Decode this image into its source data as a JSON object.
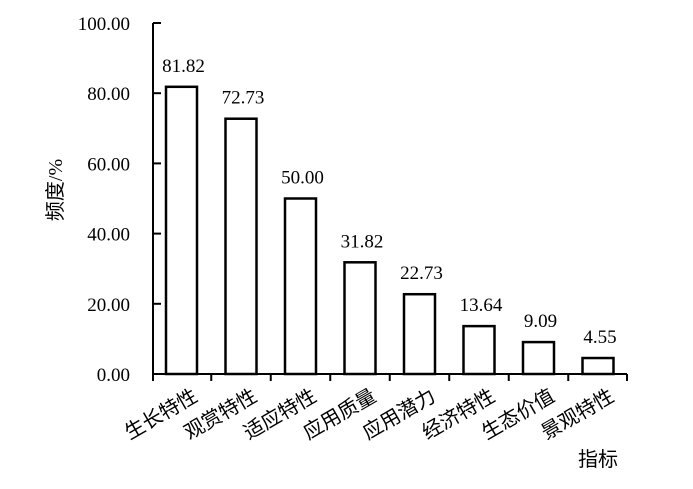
{
  "chart_data": {
    "type": "bar",
    "title": "",
    "xlabel": "指标",
    "ylabel": "频度/%",
    "categories": [
      "生长特性",
      "观赏特性",
      "适应特性",
      "应用质量",
      "应用潜力",
      "经济特性",
      "生态价值",
      "景观特性"
    ],
    "values": [
      81.82,
      72.73,
      50.0,
      31.82,
      22.73,
      13.64,
      9.09,
      4.55
    ],
    "value_labels": [
      "81.82",
      "72.73",
      "50.00",
      "31.82",
      "22.73",
      "13.64",
      "9.09",
      "4.55"
    ],
    "yticks": [
      "0.00",
      "20.00",
      "40.00",
      "60.00",
      "80.00",
      "100.00"
    ],
    "ylim": [
      0,
      100
    ],
    "grid": false,
    "legend": "none",
    "bar_fill": "#ffffff",
    "bar_stroke": "#000000"
  }
}
